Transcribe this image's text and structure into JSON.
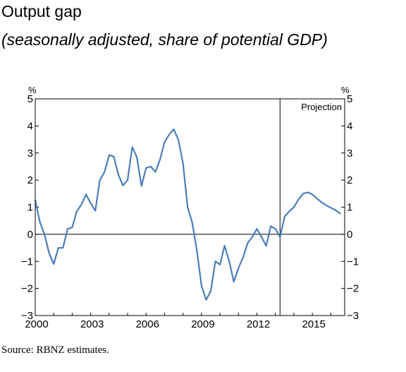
{
  "title": "Output gap",
  "subtitle": "(seasonally adjusted, share of potential GDP)",
  "source": "Source: RBNZ estimates.",
  "chart_data": {
    "type": "line",
    "unit_label_left": "%",
    "unit_label_right": "%",
    "ylim": [
      -3,
      5
    ],
    "yticks": [
      5,
      4,
      3,
      2,
      1,
      0,
      -1,
      -2,
      -3
    ],
    "ytick_labels": [
      "5",
      "4",
      "3",
      "2",
      "1",
      "0",
      "−1",
      "−2",
      "−3"
    ],
    "xlim": [
      2000.0,
      2016.75
    ],
    "xticks": [
      2000,
      2003,
      2006,
      2009,
      2012,
      2015
    ],
    "xtick_labels": [
      "2000",
      "2003",
      "2006",
      "2009",
      "2012",
      "2015"
    ],
    "projection_start": 2013.25,
    "projection_label": "Projection",
    "line_color": "#4a7ebb",
    "zero_line": true,
    "grid": false,
    "series": [
      {
        "name": "",
        "x": [
          2000.0,
          2000.25,
          2000.5,
          2000.75,
          2001.0,
          2001.25,
          2001.5,
          2001.75,
          2002.0,
          2002.25,
          2002.5,
          2002.75,
          2003.0,
          2003.25,
          2003.5,
          2003.75,
          2004.0,
          2004.25,
          2004.5,
          2004.75,
          2005.0,
          2005.25,
          2005.5,
          2005.75,
          2006.0,
          2006.25,
          2006.5,
          2006.75,
          2007.0,
          2007.25,
          2007.5,
          2007.75,
          2008.0,
          2008.25,
          2008.5,
          2008.75,
          2009.0,
          2009.25,
          2009.5,
          2009.75,
          2010.0,
          2010.25,
          2010.5,
          2010.75,
          2011.0,
          2011.25,
          2011.5,
          2011.75,
          2012.0,
          2012.25,
          2012.5,
          2012.75,
          2013.0,
          2013.25,
          2013.5,
          2013.75,
          2014.0,
          2014.25,
          2014.5,
          2014.75,
          2015.0,
          2015.25,
          2015.5,
          2015.75,
          2016.0,
          2016.25,
          2016.5
        ],
        "y": [
          1.25,
          0.45,
          0.0,
          -0.7,
          -1.1,
          -0.5,
          -0.5,
          0.2,
          0.25,
          0.85,
          1.1,
          1.47,
          1.15,
          0.87,
          2.0,
          2.3,
          2.92,
          2.87,
          2.2,
          1.8,
          2.0,
          3.22,
          2.85,
          1.78,
          2.45,
          2.5,
          2.3,
          2.75,
          3.4,
          3.68,
          3.88,
          3.48,
          2.6,
          1.0,
          0.42,
          -0.6,
          -1.9,
          -2.42,
          -2.1,
          -1.0,
          -1.12,
          -0.42,
          -1.0,
          -1.75,
          -1.25,
          -0.85,
          -0.32,
          -0.1,
          0.2,
          -0.1,
          -0.43,
          0.3,
          0.2,
          -0.1,
          0.65,
          0.85,
          1.0,
          1.28,
          1.5,
          1.55,
          1.47,
          1.32,
          1.18,
          1.07,
          0.98,
          0.89,
          0.77
        ]
      }
    ]
  }
}
